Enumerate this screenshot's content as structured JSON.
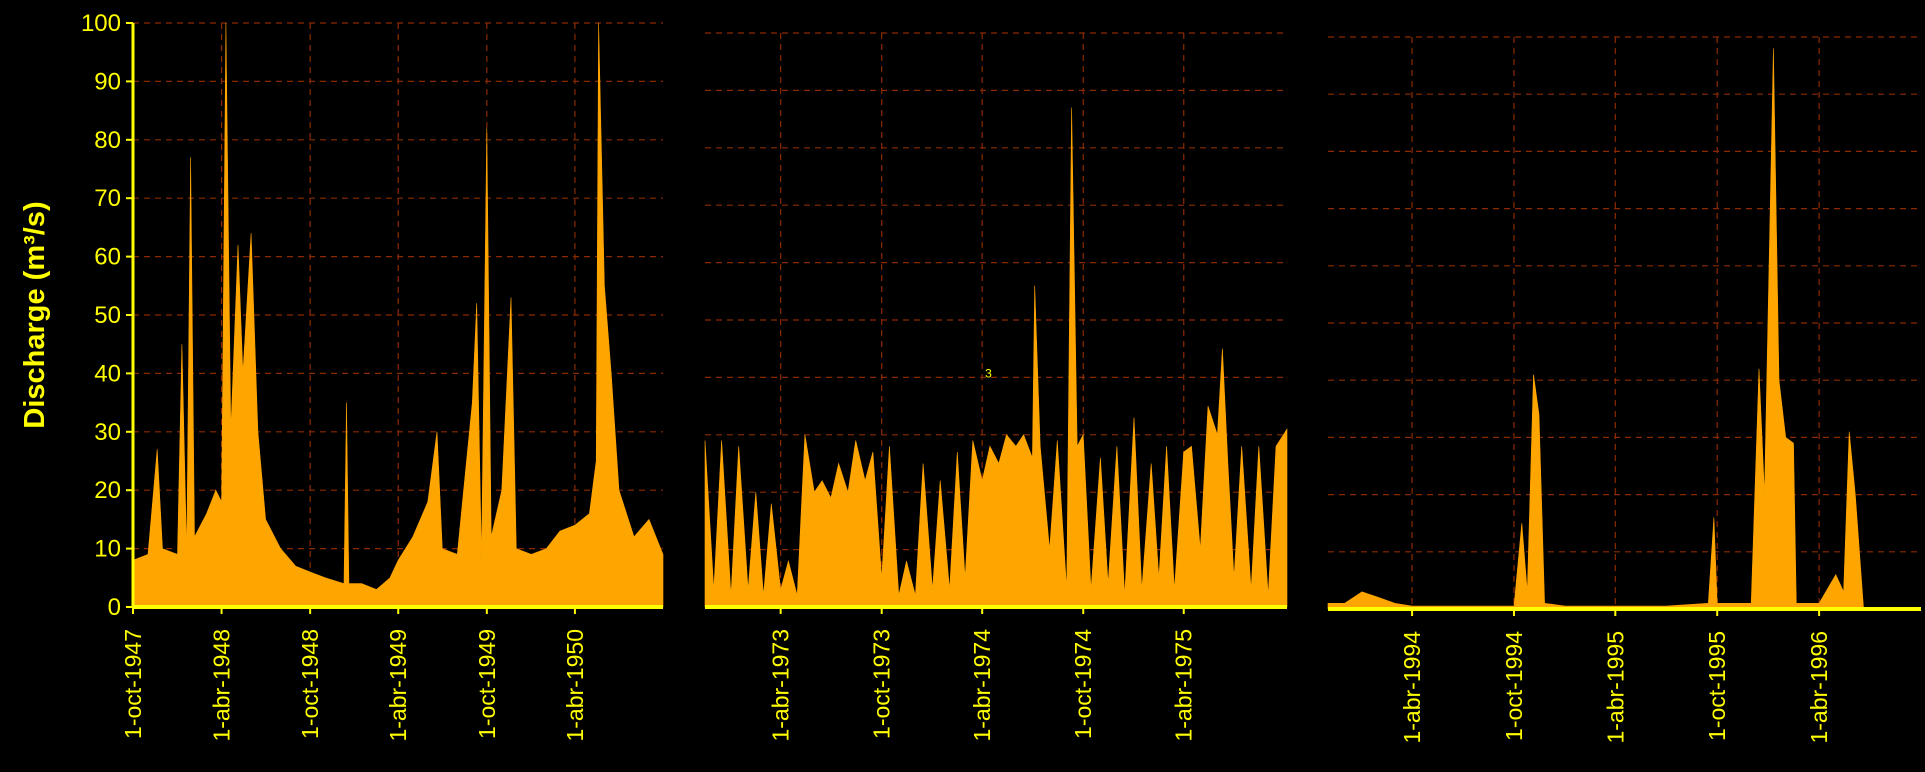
{
  "chart_data": [
    {
      "type": "area",
      "ylabel": "Discharge (m³/s)",
      "color": "#ffa500",
      "grid": true,
      "show_yticklabels": true,
      "xlim": [
        "1947-10-01",
        "1950-09-30"
      ],
      "ylim": [
        0,
        100
      ],
      "yticks": [
        0,
        10,
        20,
        30,
        40,
        50,
        60,
        70,
        80,
        90,
        100
      ],
      "xticks": [
        {
          "value": "1947-10-01",
          "label": "1-oct-1947"
        },
        {
          "value": "1948-04-01",
          "label": "1-abr-1948"
        },
        {
          "value": "1948-10-01",
          "label": "1-oct-1948"
        },
        {
          "value": "1949-04-01",
          "label": "1-abr-1949"
        },
        {
          "value": "1949-10-01",
          "label": "1-oct-1949"
        },
        {
          "value": "1950-04-01",
          "label": "1-abr-1950"
        }
      ],
      "x": [
        "1947-10-01",
        "1947-11-01",
        "1947-11-20",
        "1947-12-01",
        "1948-01-01",
        "1948-01-10",
        "1948-01-20",
        "1948-01-28",
        "1948-02-05",
        "1948-03-01",
        "1948-03-20",
        "1948-04-01",
        "1948-04-10",
        "1948-04-20",
        "1948-05-05",
        "1948-05-15",
        "1948-06-01",
        "1948-06-15",
        "1948-07-01",
        "1948-08-01",
        "1948-09-01",
        "1948-10-01",
        "1948-11-01",
        "1948-12-10",
        "1948-12-15",
        "1948-12-20",
        "1949-01-15",
        "1949-02-15",
        "1949-03-15",
        "1949-04-01",
        "1949-05-01",
        "1949-06-01",
        "1949-06-20",
        "1949-07-01",
        "1949-08-01",
        "1949-09-01",
        "1949-09-10",
        "1949-09-20",
        "1949-10-01",
        "1949-10-10",
        "1949-11-01",
        "1949-11-20",
        "1949-12-01",
        "1950-01-01",
        "1950-02-01",
        "1950-03-01",
        "1950-04-01",
        "1950-05-01",
        "1950-05-15",
        "1950-05-20",
        "1950-06-01",
        "1950-06-15",
        "1950-07-01",
        "1950-08-01",
        "1950-09-01",
        "1950-09-30"
      ],
      "values": [
        8,
        9,
        27,
        10,
        9,
        45,
        9,
        77,
        12,
        16,
        20,
        18,
        100,
        30,
        62,
        40,
        64,
        30,
        15,
        10,
        7,
        6,
        5,
        4,
        35,
        4,
        4,
        3,
        5,
        8,
        12,
        18,
        30,
        10,
        9,
        35,
        52,
        8,
        82,
        12,
        20,
        53,
        10,
        9,
        10,
        13,
        14,
        16,
        25,
        100,
        55,
        40,
        20,
        12,
        15,
        9
      ]
    },
    {
      "type": "area",
      "color": "#ffa500",
      "grid": true,
      "annotation": "3",
      "xlim": [
        "1972-11-15",
        "1975-10-05"
      ],
      "ylim": [
        0,
        100
      ],
      "yticks": [
        0,
        10,
        20,
        30,
        40,
        50,
        60,
        70,
        80,
        90,
        100
      ],
      "xticks": [
        {
          "value": "1973-04-01",
          "label": "1-abr-1973"
        },
        {
          "value": "1973-10-01",
          "label": "1-oct-1973"
        },
        {
          "value": "1974-04-01",
          "label": "1-abr-1974"
        },
        {
          "value": "1974-10-01",
          "label": "1-oct-1974"
        },
        {
          "value": "1975-04-01",
          "label": "1-abr-1975"
        }
      ],
      "x": [
        "1972-11-15",
        "1972-12-01",
        "1972-12-15",
        "1973-01-01",
        "1973-01-15",
        "1973-02-01",
        "1973-02-15",
        "1973-03-01",
        "1973-03-15",
        "1973-04-01",
        "1973-04-15",
        "1973-05-01",
        "1973-05-15",
        "1973-06-01",
        "1973-06-15",
        "1973-07-01",
        "1973-07-15",
        "1973-08-01",
        "1973-08-15",
        "1973-09-01",
        "1973-09-15",
        "1973-10-01",
        "1973-10-15",
        "1973-11-01",
        "1973-11-15",
        "1973-12-01",
        "1973-12-15",
        "1974-01-01",
        "1974-01-15",
        "1974-02-01",
        "1974-02-15",
        "1974-03-01",
        "1974-03-15",
        "1974-04-01",
        "1974-04-15",
        "1974-05-01",
        "1974-05-15",
        "1974-06-01",
        "1974-06-15",
        "1974-07-01",
        "1974-07-05",
        "1974-07-15",
        "1974-08-01",
        "1974-08-15",
        "1974-09-01",
        "1974-09-10",
        "1974-09-20",
        "1974-10-01",
        "1974-10-15",
        "1974-11-01",
        "1974-11-15",
        "1974-12-01",
        "1974-12-15",
        "1975-01-01",
        "1975-01-15",
        "1975-02-01",
        "1975-02-15",
        "1975-03-01",
        "1975-03-15",
        "1975-04-01",
        "1975-04-15",
        "1975-05-01",
        "1975-05-15",
        "1975-06-01",
        "1975-06-10",
        "1975-06-20",
        "1975-07-01",
        "1975-07-15",
        "1975-08-01",
        "1975-08-15",
        "1975-09-01",
        "1975-09-15",
        "1975-10-05"
      ],
      "values": [
        29,
        3,
        29,
        2,
        28,
        3,
        20,
        2,
        18,
        3,
        8,
        2,
        30,
        20,
        22,
        19,
        25,
        20,
        29,
        22,
        27,
        5,
        28,
        2,
        8,
        2,
        25,
        3,
        22,
        3,
        27,
        5,
        29,
        22,
        28,
        25,
        30,
        28,
        30,
        26,
        56,
        28,
        10,
        29,
        3,
        87,
        28,
        30,
        3,
        26,
        4,
        28,
        2,
        33,
        3,
        25,
        5,
        28,
        3,
        27,
        28,
        10,
        35,
        30,
        45,
        25,
        5,
        28,
        3,
        28,
        2,
        28,
        31
      ]
    },
    {
      "type": "area",
      "color": "#ffa500",
      "grid": true,
      "xlim": [
        "1993-11-01",
        "1996-10-01"
      ],
      "ylim": [
        0,
        100
      ],
      "yticks": [
        0,
        10,
        20,
        30,
        40,
        50,
        60,
        70,
        80,
        90,
        100
      ],
      "xticks": [
        {
          "value": "1994-04-01",
          "label": "1-abr-1994"
        },
        {
          "value": "1994-10-01",
          "label": "1-oct-1994"
        },
        {
          "value": "1995-04-01",
          "label": "1-abr-1995"
        },
        {
          "value": "1995-10-01",
          "label": "1-oct-1995"
        },
        {
          "value": "1996-04-01",
          "label": "1-abr-1996"
        }
      ],
      "x": [
        "1993-11-01",
        "1993-12-01",
        "1994-01-01",
        "1994-02-01",
        "1994-03-01",
        "1994-04-01",
        "1994-06-01",
        "1994-08-01",
        "1994-10-01",
        "1994-10-15",
        "1994-10-25",
        "1994-11-05",
        "1994-11-15",
        "1994-11-25",
        "1995-01-01",
        "1995-04-01",
        "1995-07-01",
        "1995-09-15",
        "1995-09-25",
        "1995-10-01",
        "1995-12-01",
        "1995-12-15",
        "1995-12-25",
        "1996-01-10",
        "1996-01-20",
        "1996-02-01",
        "1996-02-15",
        "1996-02-20",
        "1996-04-01",
        "1996-05-01",
        "1996-05-15",
        "1996-05-25",
        "1996-06-05",
        "1996-06-20",
        "1996-10-01"
      ],
      "values": [
        1,
        1,
        3,
        2,
        1,
        0.5,
        0.5,
        0.5,
        0.5,
        15,
        3,
        41,
        34,
        1,
        0.5,
        0.5,
        0.5,
        1,
        16,
        1,
        1,
        42,
        20,
        98,
        40,
        30,
        29,
        1,
        1,
        6,
        3,
        31,
        20,
        0,
        0
      ]
    }
  ]
}
